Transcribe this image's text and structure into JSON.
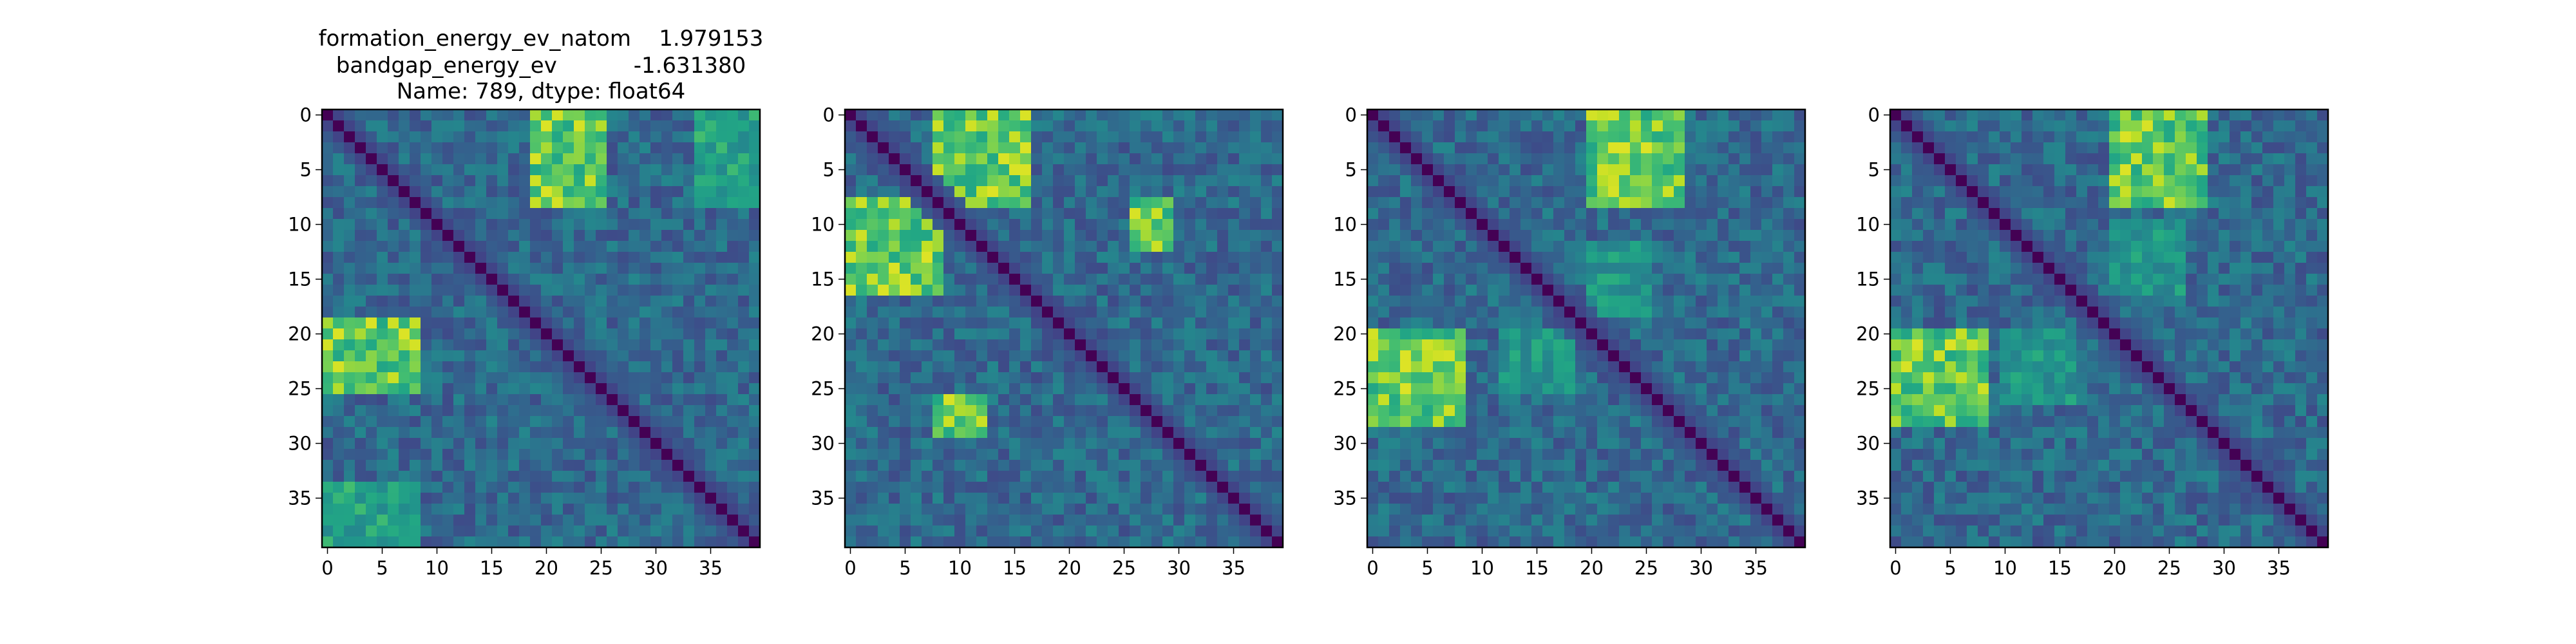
{
  "figure": {
    "title_lines": [
      "formation_energy_ev_natom    1.979153",
      "bandgap_energy_ev           -1.631380",
      "Name: 789, dtype: float64"
    ]
  },
  "chart_data": [
    {
      "type": "heatmap",
      "title": "",
      "size": 40,
      "colormap": "viridis",
      "x_ticks": [
        0,
        5,
        10,
        15,
        20,
        25,
        30,
        35
      ],
      "y_ticks": [
        0,
        5,
        10,
        15,
        20,
        25,
        30,
        35
      ],
      "xlim": [
        -0.5,
        39.5
      ],
      "ylim": [
        39.5,
        -0.5
      ],
      "diagonal": "minimum",
      "high_value_blocks": [
        {
          "rows": [
            0,
            8
          ],
          "cols": [
            20,
            25
          ],
          "level": 0.85
        },
        {
          "rows": [
            19,
            25
          ],
          "cols": [
            0,
            8
          ],
          "level": 0.85
        },
        {
          "rows": [
            0,
            8
          ],
          "cols": [
            34,
            39
          ],
          "level": 0.7
        },
        {
          "rows": [
            34,
            39
          ],
          "cols": [
            0,
            8
          ],
          "level": 0.7
        }
      ]
    },
    {
      "type": "heatmap",
      "title": "",
      "size": 40,
      "colormap": "viridis",
      "x_ticks": [
        0,
        5,
        10,
        15,
        20,
        25,
        30,
        35
      ],
      "y_ticks": [
        0,
        5,
        10,
        15,
        20,
        25,
        30,
        35
      ],
      "xlim": [
        -0.5,
        39.5
      ],
      "ylim": [
        39.5,
        -0.5
      ],
      "diagonal": "minimum",
      "high_value_blocks": [
        {
          "rows": [
            0,
            8
          ],
          "cols": [
            8,
            16
          ],
          "level": 0.85
        },
        {
          "rows": [
            8,
            16
          ],
          "cols": [
            0,
            8
          ],
          "level": 0.8
        },
        {
          "rows": [
            8,
            12
          ],
          "cols": [
            26,
            29
          ],
          "level": 0.8
        },
        {
          "rows": [
            26,
            29
          ],
          "cols": [
            8,
            12
          ],
          "level": 0.85
        }
      ]
    },
    {
      "type": "heatmap",
      "title": "",
      "size": 40,
      "colormap": "viridis",
      "x_ticks": [
        0,
        5,
        10,
        15,
        20,
        25,
        30,
        35
      ],
      "y_ticks": [
        0,
        5,
        10,
        15,
        20,
        25,
        30,
        35
      ],
      "xlim": [
        -0.5,
        39.5
      ],
      "ylim": [
        39.5,
        -0.5
      ],
      "diagonal": "minimum",
      "high_value_blocks": [
        {
          "rows": [
            0,
            8
          ],
          "cols": [
            20,
            28
          ],
          "level": 0.85
        },
        {
          "rows": [
            20,
            28
          ],
          "cols": [
            0,
            8
          ],
          "level": 0.85
        },
        {
          "rows": [
            12,
            18
          ],
          "cols": [
            20,
            25
          ],
          "level": 0.65
        },
        {
          "rows": [
            20,
            25
          ],
          "cols": [
            12,
            18
          ],
          "level": 0.6
        }
      ]
    },
    {
      "type": "heatmap",
      "title": "",
      "size": 40,
      "colormap": "viridis",
      "x_ticks": [
        0,
        5,
        10,
        15,
        20,
        25,
        30,
        35
      ],
      "y_ticks": [
        0,
        5,
        10,
        15,
        20,
        25,
        30,
        35
      ],
      "xlim": [
        -0.5,
        39.5
      ],
      "ylim": [
        39.5,
        -0.5
      ],
      "diagonal": "minimum",
      "high_value_blocks": [
        {
          "rows": [
            0,
            8
          ],
          "cols": [
            20,
            28
          ],
          "level": 0.85
        },
        {
          "rows": [
            20,
            28
          ],
          "cols": [
            0,
            8
          ],
          "level": 0.85
        },
        {
          "rows": [
            10,
            16
          ],
          "cols": [
            20,
            26
          ],
          "level": 0.65
        },
        {
          "rows": [
            20,
            26
          ],
          "cols": [
            10,
            16
          ],
          "level": 0.6
        }
      ]
    }
  ]
}
